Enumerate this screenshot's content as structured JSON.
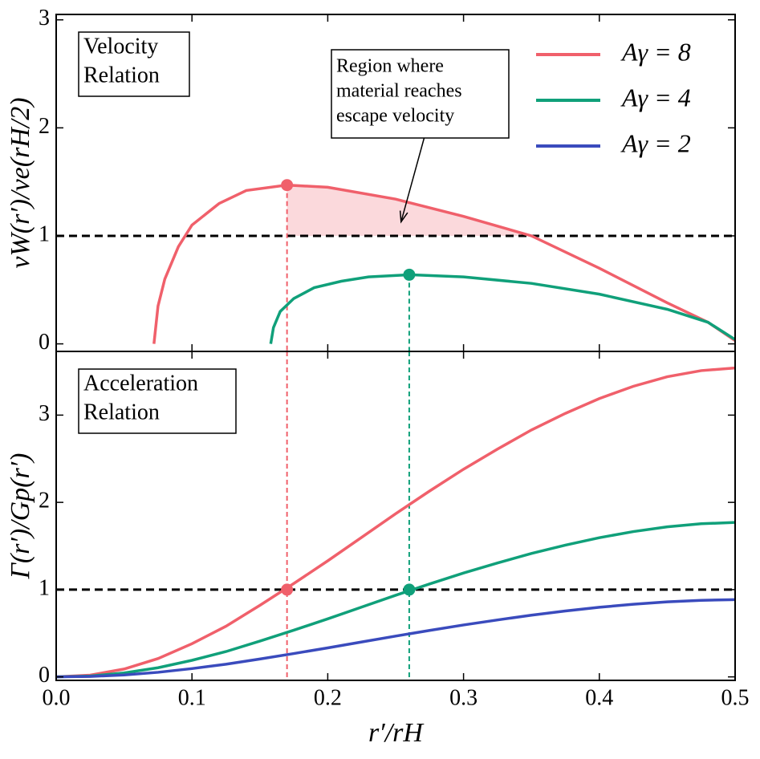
{
  "chart_data": [
    {
      "type": "line",
      "ylabel": "vW(r′)/ve(rH/2)",
      "panel_label": [
        "Velocity",
        "Relation"
      ],
      "annotation": [
        "Region where",
        "material reaches",
        "escape velocity"
      ],
      "annotation_target": {
        "x": 0.254,
        "y": 1.13
      },
      "xlim": [
        0,
        0.5
      ],
      "ylim": [
        -0.07,
        3.05
      ],
      "yticks": [
        0,
        1,
        2,
        3
      ],
      "hline": 1,
      "fill": {
        "series": 0,
        "from": 0.17,
        "to": 0.35,
        "level": 1,
        "color": "#fbd9dc"
      },
      "legend": "upper right",
      "series": [
        {
          "name": "Aγ = 8",
          "color": "#f0606b",
          "x": [
            0.072,
            0.075,
            0.08,
            0.09,
            0.1,
            0.12,
            0.14,
            0.17,
            0.2,
            0.25,
            0.3,
            0.35,
            0.4,
            0.45,
            0.48,
            0.5
          ],
          "values": [
            0,
            0.35,
            0.6,
            0.9,
            1.1,
            1.3,
            1.42,
            1.47,
            1.45,
            1.34,
            1.18,
            1.0,
            0.7,
            0.38,
            0.2,
            0.03
          ]
        },
        {
          "name": "Aγ = 4",
          "color": "#10a07a",
          "x": [
            0.158,
            0.16,
            0.165,
            0.175,
            0.19,
            0.21,
            0.23,
            0.26,
            0.3,
            0.35,
            0.4,
            0.45,
            0.48,
            0.5
          ],
          "values": [
            0,
            0.15,
            0.3,
            0.42,
            0.52,
            0.58,
            0.62,
            0.64,
            0.62,
            0.56,
            0.46,
            0.32,
            0.2,
            0.04
          ]
        },
        {
          "name": "Aγ = 2",
          "color": "#3a4bbd",
          "x": [],
          "values": []
        }
      ],
      "points": [
        {
          "x": 0.17,
          "y": 1.47,
          "color": "#f0606b"
        },
        {
          "x": 0.26,
          "y": 0.64,
          "color": "#10a07a"
        }
      ]
    },
    {
      "type": "line",
      "ylabel": "Γ(r′)/Gp(r′)",
      "xlabel": "r′/rH",
      "panel_label": [
        "Acceleration",
        "Relation"
      ],
      "xlim": [
        0,
        0.5
      ],
      "xticks": [
        {
          "value": 0,
          "label": "0.0"
        },
        0.1,
        0.2,
        0.3,
        0.4,
        0.5
      ],
      "ylim": [
        -0.04,
        3.73
      ],
      "yticks": [
        0,
        1,
        2,
        3
      ],
      "hline": 1,
      "series": [
        {
          "name": "Aγ = 8",
          "color": "#f0606b",
          "x": [
            0,
            0.025,
            0.05,
            0.075,
            0.1,
            0.125,
            0.15,
            0.175,
            0.2,
            0.225,
            0.25,
            0.275,
            0.3,
            0.325,
            0.35,
            0.375,
            0.4,
            0.425,
            0.45,
            0.475,
            0.5
          ],
          "values": [
            0,
            0.02,
            0.09,
            0.21,
            0.38,
            0.58,
            0.82,
            1.07,
            1.33,
            1.6,
            1.87,
            2.13,
            2.38,
            2.61,
            2.83,
            3.02,
            3.19,
            3.33,
            3.44,
            3.51,
            3.54
          ]
        },
        {
          "name": "Aγ = 4",
          "color": "#10a07a",
          "x": [
            0,
            0.025,
            0.05,
            0.075,
            0.1,
            0.125,
            0.15,
            0.175,
            0.2,
            0.225,
            0.25,
            0.275,
            0.3,
            0.325,
            0.35,
            0.375,
            0.4,
            0.425,
            0.45,
            0.475,
            0.5
          ],
          "values": [
            0,
            0.01,
            0.045,
            0.105,
            0.19,
            0.29,
            0.41,
            0.535,
            0.665,
            0.8,
            0.935,
            1.065,
            1.19,
            1.305,
            1.415,
            1.51,
            1.595,
            1.665,
            1.72,
            1.755,
            1.77
          ]
        },
        {
          "name": "Aγ = 2",
          "color": "#3a4bbd",
          "x": [
            0,
            0.025,
            0.05,
            0.075,
            0.1,
            0.125,
            0.15,
            0.175,
            0.2,
            0.225,
            0.25,
            0.275,
            0.3,
            0.325,
            0.35,
            0.375,
            0.4,
            0.425,
            0.45,
            0.475,
            0.5
          ],
          "values": [
            0,
            0.005,
            0.0225,
            0.0525,
            0.095,
            0.145,
            0.205,
            0.2675,
            0.3325,
            0.4,
            0.4675,
            0.5325,
            0.595,
            0.6525,
            0.7075,
            0.755,
            0.7975,
            0.8325,
            0.86,
            0.8775,
            0.885
          ]
        }
      ],
      "points": [
        {
          "x": 0.17,
          "y": 1,
          "color": "#f0606b"
        },
        {
          "x": 0.26,
          "y": 1,
          "color": "#10a07a"
        }
      ]
    }
  ]
}
